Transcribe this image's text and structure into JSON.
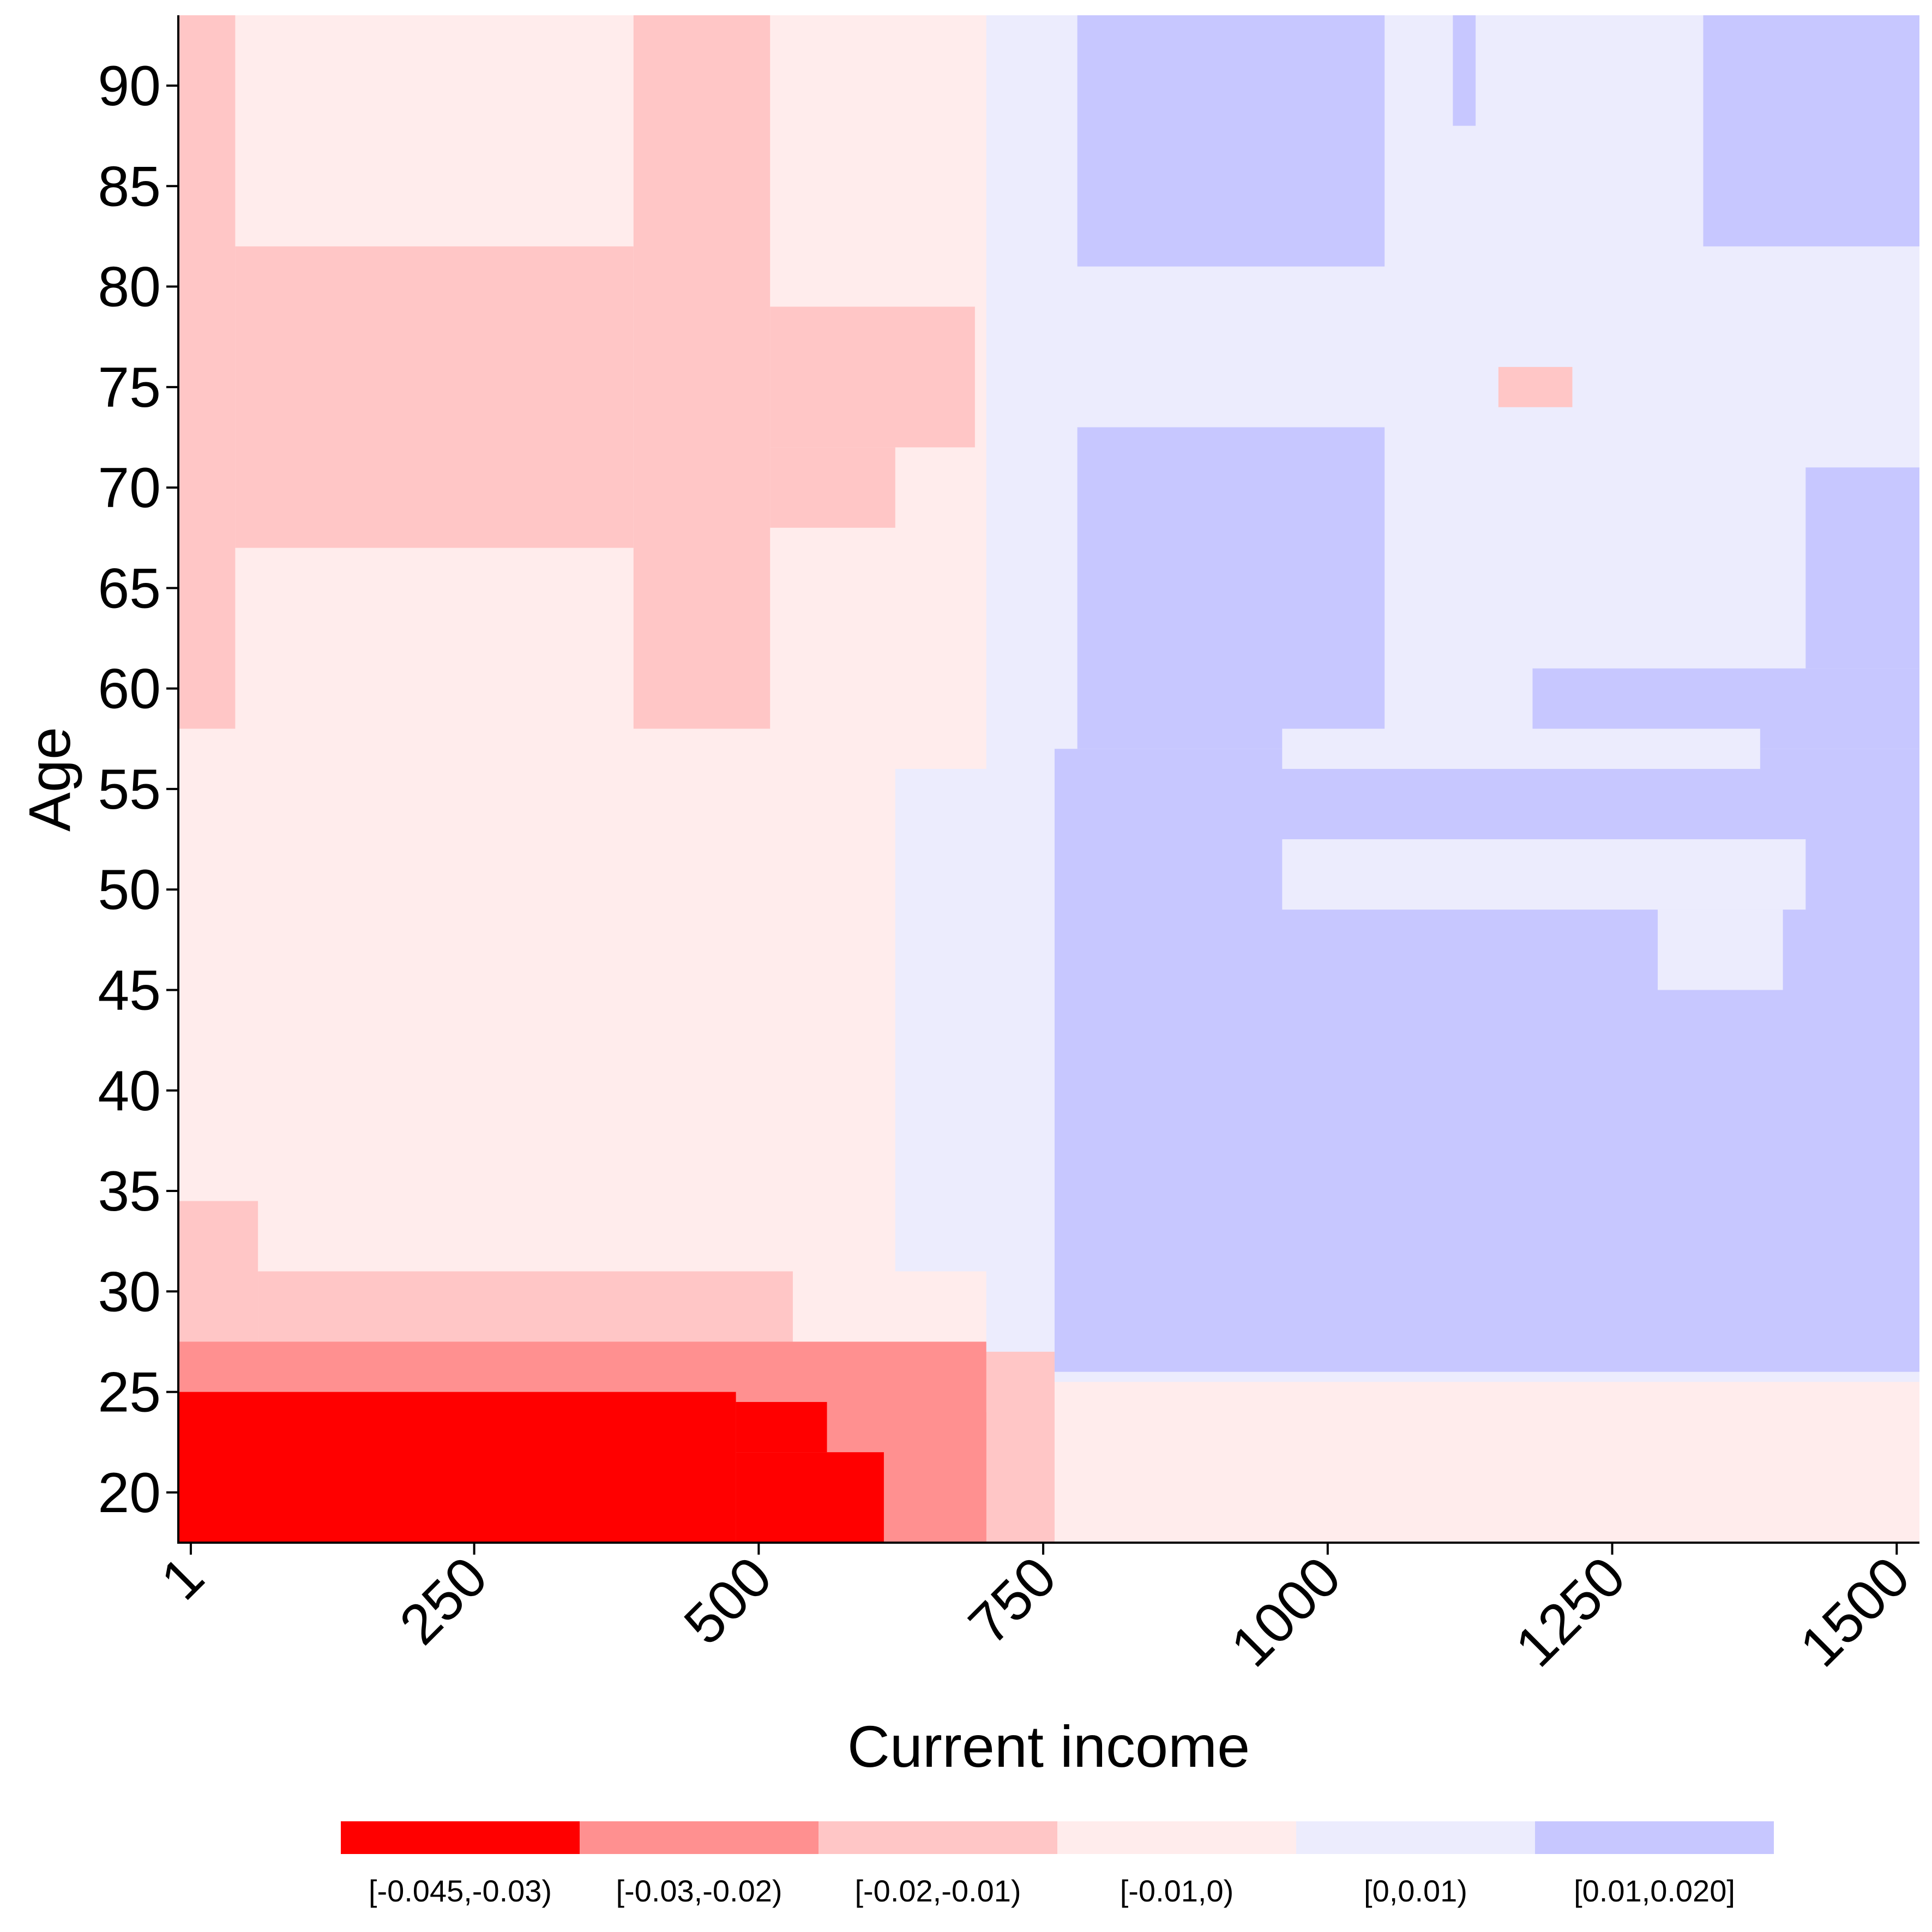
{
  "chart_data": {
    "type": "heatmap",
    "xlabel": "Current income",
    "ylabel": "Age",
    "xlim": [
      -10,
      1520
    ],
    "ylim": [
      17.5,
      93.5
    ],
    "x_ticks": [
      1,
      250,
      500,
      750,
      1000,
      1250,
      1500
    ],
    "y_ticks": [
      20,
      25,
      30,
      35,
      40,
      45,
      50,
      55,
      60,
      65,
      70,
      75,
      80,
      85,
      90
    ],
    "legend": {
      "position": "bottom",
      "bins": [
        {
          "label": "[-0.045,-0.03)",
          "color": "#ff0000"
        },
        {
          "label": "[-0.03,-0.02)",
          "color": "#ff9090"
        },
        {
          "label": "[-0.02,-0.01)",
          "color": "#ffc6c6"
        },
        {
          "label": "[-0.01,0)",
          "color": "#ffecec"
        },
        {
          "label": "[0,0.01)",
          "color": "#ececfd"
        },
        {
          "label": "[0.01,0.020]",
          "color": "#c7c7ff"
        }
      ]
    },
    "default_bin": 3,
    "regions": [
      {
        "bin": 4,
        "x": [
          700,
          1520
        ],
        "y": [
          25.5,
          93.5
        ]
      },
      {
        "bin": 4,
        "x": [
          620,
          760
        ],
        "y": [
          31,
          56
        ]
      },
      {
        "bin": 5,
        "x": [
          760,
          1520
        ],
        "y": [
          26,
          57
        ]
      },
      {
        "bin": 5,
        "x": [
          780,
          1050
        ],
        "y": [
          57,
          73
        ]
      },
      {
        "bin": 5,
        "x": [
          1180,
          1520
        ],
        "y": [
          57,
          61
        ]
      },
      {
        "bin": 5,
        "x": [
          1420,
          1520
        ],
        "y": [
          61,
          71
        ]
      },
      {
        "bin": 5,
        "x": [
          780,
          1050
        ],
        "y": [
          81,
          93.5
        ]
      },
      {
        "bin": 5,
        "x": [
          1330,
          1520
        ],
        "y": [
          82,
          93.5
        ]
      },
      {
        "bin": 5,
        "x": [
          1110,
          1130
        ],
        "y": [
          88,
          93.5
        ]
      },
      {
        "bin": 4,
        "x": [
          960,
          1420
        ],
        "y": [
          49,
          52.5
        ]
      },
      {
        "bin": 4,
        "x": [
          1290,
          1400
        ],
        "y": [
          45,
          49
        ]
      },
      {
        "bin": 4,
        "x": [
          960,
          1380
        ],
        "y": [
          56,
          58
        ]
      },
      {
        "bin": 2,
        "x": [
          1150,
          1215
        ],
        "y": [
          74,
          76
        ]
      },
      {
        "bin": 2,
        "x": [
          -10,
          40
        ],
        "y": [
          58,
          93.5
        ]
      },
      {
        "bin": 2,
        "x": [
          390,
          510
        ],
        "y": [
          58,
          93.5
        ]
      },
      {
        "bin": 2,
        "x": [
          40,
          390
        ],
        "y": [
          67,
          82
        ]
      },
      {
        "bin": 2,
        "x": [
          510,
          690
        ],
        "y": [
          72,
          79
        ]
      },
      {
        "bin": 2,
        "x": [
          510,
          620
        ],
        "y": [
          68,
          72
        ]
      },
      {
        "bin": 2,
        "x": [
          -10,
          60
        ],
        "y": [
          27,
          34.5
        ]
      },
      {
        "bin": 2,
        "x": [
          60,
          530
        ],
        "y": [
          25,
          31
        ]
      },
      {
        "bin": 2,
        "x": [
          530,
          760
        ],
        "y": [
          17.5,
          27
        ]
      },
      {
        "bin": 1,
        "x": [
          -10,
          700
        ],
        "y": [
          17.5,
          27.5
        ]
      },
      {
        "bin": 1,
        "x": [
          530,
          700
        ],
        "y": [
          17.5,
          24
        ]
      },
      {
        "bin": 0,
        "x": [
          -10,
          480
        ],
        "y": [
          17.5,
          25
        ]
      },
      {
        "bin": 0,
        "x": [
          480,
          610
        ],
        "y": [
          17.5,
          22
        ]
      },
      {
        "bin": 0,
        "x": [
          480,
          560
        ],
        "y": [
          22,
          24.5
        ]
      }
    ]
  }
}
